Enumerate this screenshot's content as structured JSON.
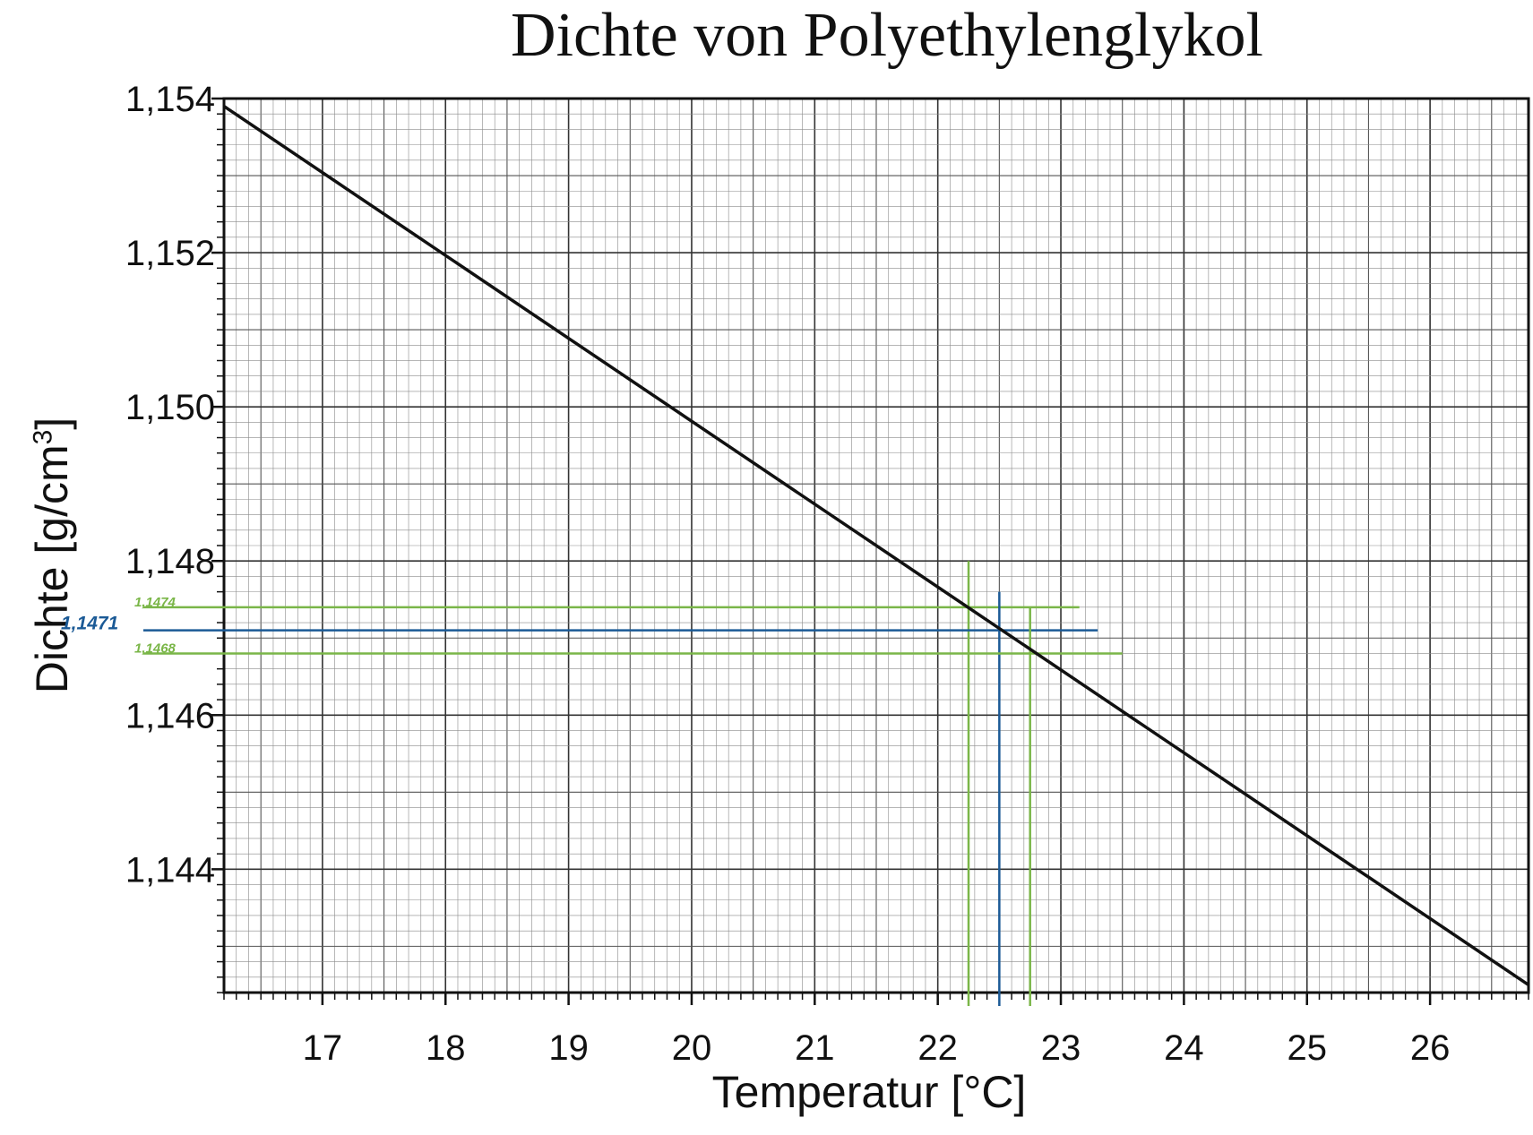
{
  "chart_data": {
    "type": "line",
    "title": "Dichte von Polyethylenglykol",
    "xlabel": "Temperatur [°C]",
    "ylabel": "Dichte [g/cm",
    "ylabel_superscript": "3",
    "ylabel_suffix": "]",
    "xlim": [
      16.2,
      26.8
    ],
    "ylim": [
      1.1424,
      1.154
    ],
    "x_ticks": [
      17,
      18,
      19,
      20,
      21,
      22,
      23,
      24,
      25,
      26
    ],
    "x_tick_labels": [
      "17",
      "18",
      "19",
      "20",
      "21",
      "22",
      "23",
      "24",
      "25",
      "26"
    ],
    "y_ticks": [
      1.144,
      1.146,
      1.148,
      1.15,
      1.152,
      1.154
    ],
    "y_tick_labels": [
      "1,144",
      "1,146",
      "1,148",
      "1,150",
      "1,152",
      "1,154"
    ],
    "grid": true,
    "series": [
      {
        "x": [
          16.2,
          26.8
        ],
        "y": [
          1.1539,
          1.1425
        ],
        "color": "#111111"
      }
    ],
    "annotations": [
      {
        "label": "1,1474",
        "y": 1.1474,
        "x_end": 23.15,
        "x_vertical": 22.25,
        "color": "#7ab648"
      },
      {
        "label": "1,1471",
        "y": 1.1471,
        "x_end": 23.3,
        "x_vertical": 22.5,
        "color": "#1b5a96"
      },
      {
        "label": "1,1468",
        "y": 1.1468,
        "x_end": 23.5,
        "x_vertical": 22.75,
        "color": "#7ab648"
      }
    ]
  }
}
